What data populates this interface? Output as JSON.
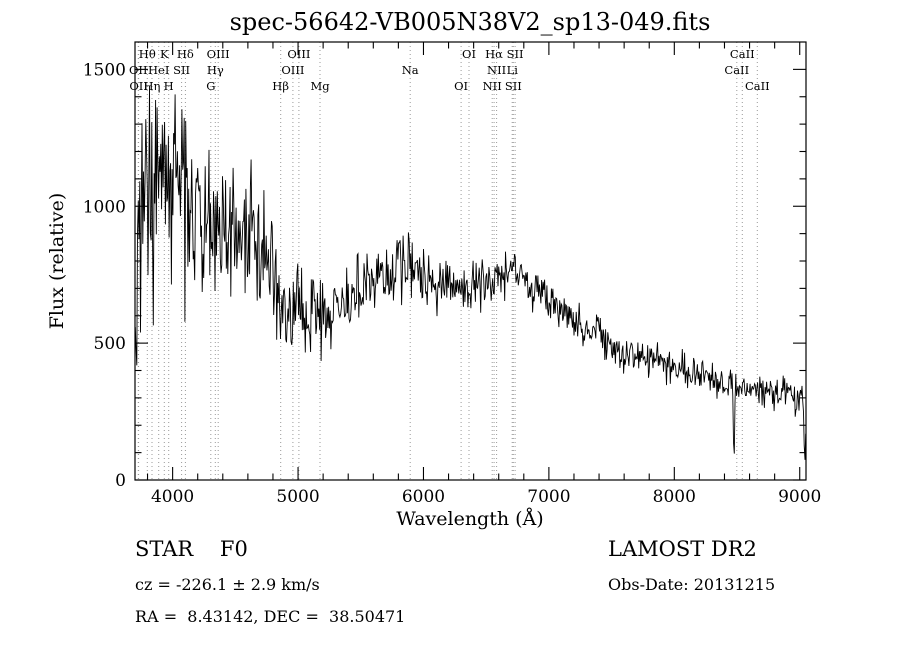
{
  "title": "spec-56642-VB005N38V2_sp13-049.fits",
  "footer": {
    "class_line": "STAR    F0",
    "survey": "LAMOST DR2",
    "cz_line": "cz = -226.1 ± 2.9 km/s",
    "obs_date_line": "Obs-Date: 20131215",
    "radec_line": "RA =  8.43142, DEC =  38.50471"
  },
  "chart_data": {
    "type": "line",
    "title": "spec-56642-VB005N38V2_sp13-049.fits",
    "xlabel": "Wavelength (Å)",
    "ylabel": "Flux (relative)",
    "xlim": [
      3700,
      9050
    ],
    "ylim": [
      0,
      1600
    ],
    "x_major_ticks": [
      4000,
      5000,
      6000,
      7000,
      8000,
      9000
    ],
    "x_minor_step": 200,
    "y_major_ticks": [
      0,
      500,
      1000,
      1500
    ],
    "y_minor_step": 100,
    "grid": false,
    "legend": null,
    "line_color": "#000000",
    "marker_line_color": "#999999",
    "frame_color": "#000000",
    "spectral_lines": [
      {
        "label": "Hθ",
        "wavelength": 3797.9,
        "row": 0
      },
      {
        "label": "K",
        "wavelength": 3933.7,
        "row": 0
      },
      {
        "label": "Hδ",
        "wavelength": 4101.7,
        "row": 0
      },
      {
        "label": "OIII",
        "wavelength": 4363.2,
        "row": 0
      },
      {
        "label": "OIII",
        "wavelength": 5006.8,
        "row": 0
      },
      {
        "label": "OI",
        "wavelength": 6363.2,
        "row": 0
      },
      {
        "label": "Hα",
        "wavelength": 6562.8,
        "row": 0
      },
      {
        "label": "SII",
        "wavelength": 6730.8,
        "row": 0
      },
      {
        "label": "CaII",
        "wavelength": 8542.1,
        "row": 0
      },
      {
        "label": "OII",
        "wavelength": 3726.0,
        "row": 1
      },
      {
        "label": "HeI",
        "wavelength": 3889.0,
        "row": 1
      },
      {
        "label": "SII",
        "wavelength": 4071.7,
        "row": 1
      },
      {
        "label": "Hγ",
        "wavelength": 4340.5,
        "row": 1
      },
      {
        "label": "OIII",
        "wavelength": 4958.9,
        "row": 1
      },
      {
        "label": "Na",
        "wavelength": 5894.0,
        "row": 1
      },
      {
        "label": "NII",
        "wavelength": 6583.4,
        "row": 1
      },
      {
        "label": "Li",
        "wavelength": 6707.8,
        "row": 1
      },
      {
        "label": "CaII",
        "wavelength": 8498.0,
        "row": 1
      },
      {
        "label": "OII",
        "wavelength": 3728.8,
        "row": 2
      },
      {
        "label": "Hη",
        "wavelength": 3835.4,
        "row": 2
      },
      {
        "label": "H",
        "wavelength": 3968.5,
        "row": 2
      },
      {
        "label": "G",
        "wavelength": 4304.4,
        "row": 2
      },
      {
        "label": "Hβ",
        "wavelength": 4861.3,
        "row": 2
      },
      {
        "label": "Mg",
        "wavelength": 5175.4,
        "row": 2
      },
      {
        "label": "OI",
        "wavelength": 6300.2,
        "row": 2
      },
      {
        "label": "NII",
        "wavelength": 6548.0,
        "row": 2
      },
      {
        "label": "SII",
        "wavelength": 6716.4,
        "row": 2
      },
      {
        "label": "CaII",
        "wavelength": 8662.1,
        "row": 2
      }
    ],
    "spectrum_envelope": {
      "wavelength": [
        3700,
        3720,
        3760,
        3800,
        3850,
        3900,
        3950,
        4000,
        4050,
        4100,
        4150,
        4200,
        4300,
        4400,
        4500,
        4600,
        4700,
        4800,
        4900,
        5000,
        5100,
        5200,
        5300,
        5400,
        5500,
        5600,
        5700,
        5800,
        5850,
        5900,
        6000,
        6100,
        6200,
        6300,
        6400,
        6500,
        6600,
        6700,
        6800,
        6900,
        7000,
        7100,
        7200,
        7300,
        7400,
        7500,
        7600,
        7700,
        7800,
        7900,
        8000,
        8100,
        8200,
        8300,
        8400,
        8500,
        8600,
        8700,
        8800,
        8900,
        9000,
        9045
      ],
      "flux": [
        650,
        950,
        1020,
        1060,
        1020,
        1080,
        1060,
        1120,
        1080,
        1100,
        1000,
        960,
        900,
        940,
        900,
        880,
        830,
        720,
        640,
        610,
        620,
        600,
        620,
        650,
        690,
        730,
        750,
        790,
        780,
        760,
        720,
        700,
        700,
        690,
        700,
        715,
        740,
        755,
        730,
        700,
        665,
        630,
        595,
        560,
        535,
        505,
        460,
        450,
        440,
        430,
        420,
        400,
        385,
        372,
        362,
        348,
        332,
        330,
        322,
        315,
        305,
        300
      ]
    },
    "noise_profile": {
      "wavelength": [
        3700,
        3900,
        4100,
        4200,
        4400,
        4600,
        4800,
        5000,
        5300,
        5600,
        5800,
        6000,
        6300,
        6600,
        6900,
        7200,
        7500,
        8000,
        8500,
        9045
      ],
      "sigma": [
        230,
        240,
        220,
        160,
        140,
        120,
        90,
        70,
        65,
        60,
        70,
        55,
        48,
        45,
        40,
        38,
        34,
        30,
        30,
        34
      ]
    },
    "absorption_dips": [
      {
        "center": 4340,
        "depth": 120,
        "width": 6
      },
      {
        "center": 4861,
        "depth": 100,
        "width": 6
      },
      {
        "center": 6562,
        "depth": 110,
        "width": 5
      },
      {
        "center": 6867,
        "depth": 80,
        "width": 10
      },
      {
        "center": 7600,
        "depth": 55,
        "width": 14
      },
      {
        "center": 8475,
        "depth": 280,
        "width": 7
      },
      {
        "center": 9040,
        "depth": 255,
        "width": 9
      }
    ],
    "sample_step": 6,
    "seed": 1234567
  }
}
